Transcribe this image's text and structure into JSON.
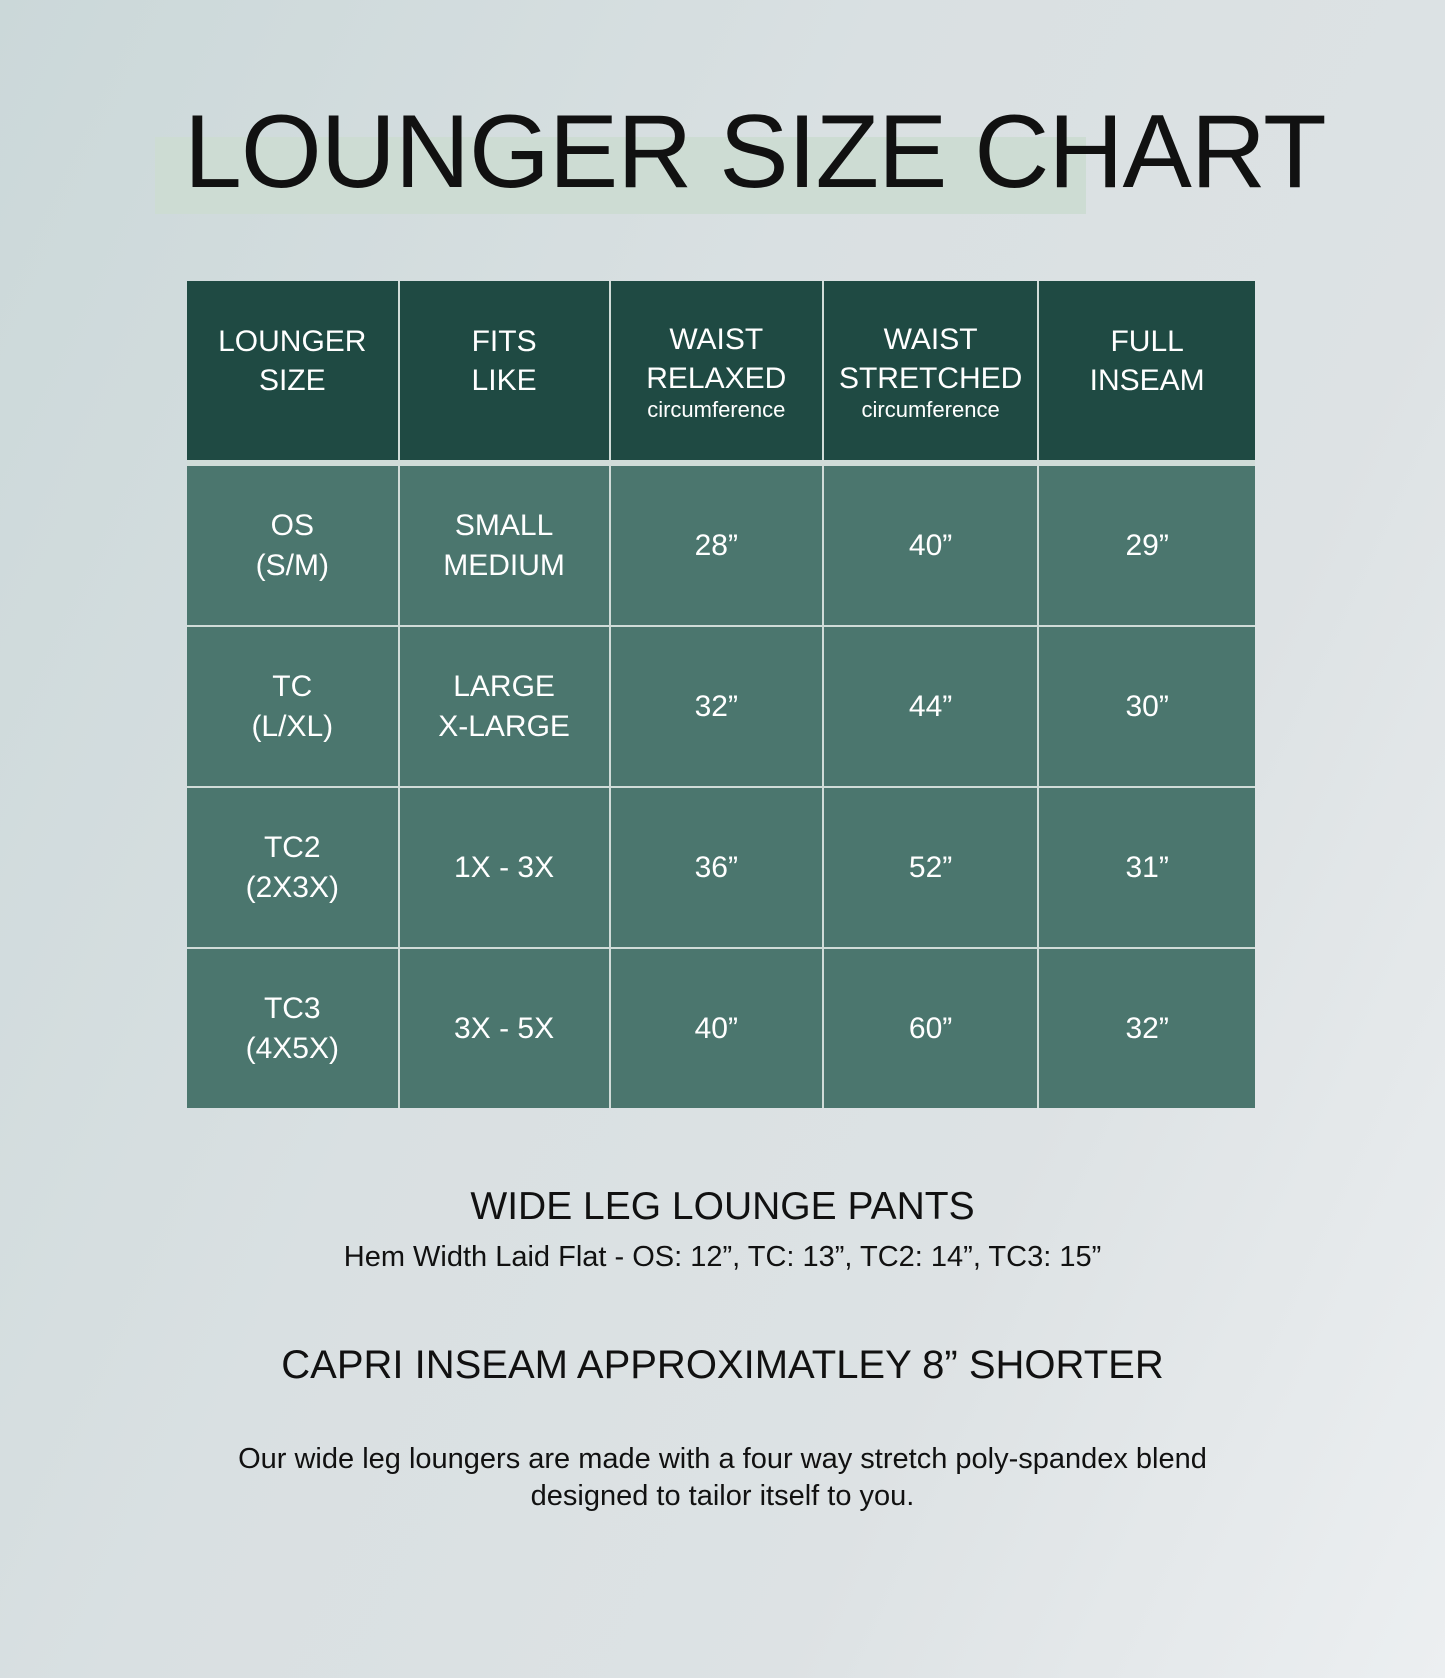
{
  "title": "LOUNGER SIZE CHART",
  "colors": {
    "header": "#1f4a43",
    "row": "#4b766e",
    "highlight": "#cddcd3"
  },
  "table": {
    "headers": [
      {
        "lines": [
          "LOUNGER",
          "SIZE"
        ],
        "sub": ""
      },
      {
        "lines": [
          "FITS",
          "LIKE"
        ],
        "sub": ""
      },
      {
        "lines": [
          "WAIST",
          "RELAXED"
        ],
        "sub": "circumference"
      },
      {
        "lines": [
          "WAIST",
          "STRETCHED"
        ],
        "sub": "circumference"
      },
      {
        "lines": [
          "FULL",
          "INSEAM"
        ],
        "sub": ""
      }
    ],
    "rows": [
      {
        "size": [
          "OS",
          "(S/M)"
        ],
        "fits": [
          "SMALL",
          "MEDIUM"
        ],
        "relaxed": "28”",
        "stretched": "40”",
        "inseam": "29”"
      },
      {
        "size": [
          "TC",
          "(L/XL)"
        ],
        "fits": [
          "LARGE",
          "X-LARGE"
        ],
        "relaxed": "32”",
        "stretched": "44”",
        "inseam": "30”"
      },
      {
        "size": [
          "TC2",
          "(2X3X)"
        ],
        "fits": [
          "1X - 3X"
        ],
        "relaxed": "36”",
        "stretched": "52”",
        "inseam": "31”"
      },
      {
        "size": [
          "TC3",
          "(4X5X)"
        ],
        "fits": [
          "3X - 5X"
        ],
        "relaxed": "40”",
        "stretched": "60”",
        "inseam": "32”"
      }
    ]
  },
  "notes": {
    "heading1": "WIDE LEG LOUNGE PANTS",
    "hem": "Hem Width Laid Flat - OS: 12”, TC: 13”, TC2: 14”, TC3: 15”",
    "heading2": "CAPRI INSEAM APPROXIMATLEY 8” SHORTER",
    "desc1": "Our wide leg loungers are made with a four way stretch poly-spandex blend",
    "desc2": "designed to tailor itself to you."
  }
}
